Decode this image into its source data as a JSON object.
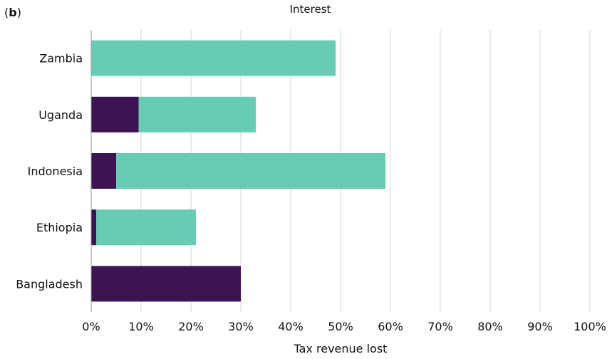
{
  "panel": {
    "open": "(",
    "letter": "b",
    "close": ")"
  },
  "chart_data": {
    "type": "bar",
    "orientation": "horizontal",
    "stacked": true,
    "title": "Interest",
    "xlabel": "Tax revenue lost",
    "ylabel": "",
    "categories": [
      "Zambia",
      "Uganda",
      "Indonesia",
      "Ethiopia",
      "Bangladesh"
    ],
    "series": [
      {
        "values": [
          0,
          9.5,
          5,
          1,
          30
        ],
        "color": "#3d1452"
      },
      {
        "values": [
          49,
          23.5,
          54,
          20,
          0
        ],
        "color": "#66cdb4"
      }
    ],
    "xlim": [
      0,
      100
    ],
    "x_ticks": [
      "0%",
      "10%",
      "20%",
      "30%",
      "40%",
      "50%",
      "60%",
      "70%",
      "80%",
      "90%",
      "100%"
    ],
    "grid": true,
    "legend": "none"
  }
}
